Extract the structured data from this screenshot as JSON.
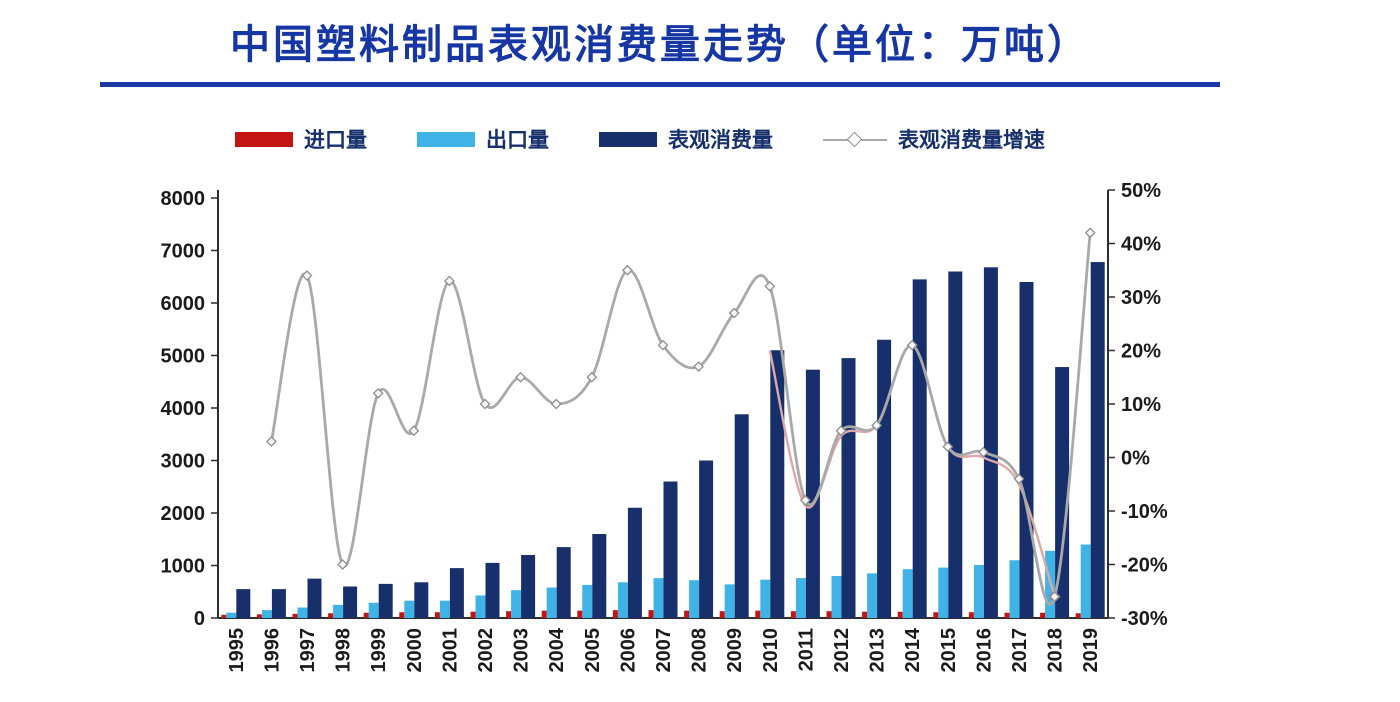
{
  "title": {
    "text": "中国塑料制品表观消费量走势（单位：万吨）",
    "color": "#1636a4",
    "underline_color": "#1c3aa6"
  },
  "legend": {
    "items": [
      {
        "key": "imports",
        "label": "进口量",
        "type": "bar",
        "color": "#c41414"
      },
      {
        "key": "exports",
        "label": "出口量",
        "type": "bar",
        "color": "#3fb3e6"
      },
      {
        "key": "consumption",
        "label": "表观消费量",
        "type": "bar",
        "color": "#17306b"
      },
      {
        "key": "growth",
        "label": "表观消费量增速",
        "type": "line",
        "color": "#a9a9a9"
      }
    ]
  },
  "chart_data": {
    "type": "bar+line",
    "title": "中国塑料制品表观消费量走势（单位：万吨）",
    "unit": "万吨",
    "grid": false,
    "legend_position": "top",
    "categories": [
      "1995",
      "1996",
      "1997",
      "1998",
      "1999",
      "2000",
      "2001",
      "2002",
      "2003",
      "2004",
      "2005",
      "2006",
      "2007",
      "2008",
      "2009",
      "2010",
      "2011",
      "2012",
      "2013",
      "2014",
      "2015",
      "2016",
      "2017",
      "2018",
      "2019"
    ],
    "series": [
      {
        "key": "imports",
        "name": "进口量",
        "type": "bar",
        "axis": "left",
        "color": "#c41414",
        "values": [
          60,
          70,
          80,
          90,
          100,
          110,
          110,
          120,
          130,
          140,
          140,
          150,
          150,
          140,
          130,
          140,
          130,
          130,
          120,
          120,
          110,
          110,
          100,
          100,
          90
        ]
      },
      {
        "key": "exports",
        "name": "出口量",
        "type": "bar",
        "axis": "left",
        "color": "#3fb3e6",
        "values": [
          100,
          150,
          200,
          250,
          290,
          330,
          330,
          430,
          530,
          580,
          630,
          680,
          760,
          720,
          640,
          730,
          760,
          800,
          850,
          930,
          960,
          1010,
          1100,
          1280,
          1400
        ]
      },
      {
        "key": "consumption",
        "name": "表观消费量",
        "type": "bar",
        "axis": "left",
        "color": "#17306b",
        "values": [
          550,
          550,
          750,
          600,
          650,
          680,
          950,
          1050,
          1200,
          1350,
          1600,
          2100,
          2600,
          3000,
          3880,
          5100,
          4730,
          4950,
          5300,
          6450,
          6600,
          6680,
          6400,
          4780,
          6780
        ]
      },
      {
        "key": "growth",
        "name": "表观消费量增速",
        "type": "line",
        "axis": "right",
        "color": "#a9a9a9",
        "unit": "%",
        "values": [
          null,
          3,
          34,
          -20,
          12,
          5,
          33,
          10,
          15,
          10,
          15,
          35,
          21,
          17,
          27,
          32,
          -8,
          5,
          6,
          21,
          2,
          1,
          -4,
          -26,
          42
        ]
      }
    ],
    "overlay_line": {
      "name": "增速重叠红线(2010-2018)",
      "color": "#dfa8a8",
      "start_category": "2010",
      "values": [
        20,
        -9,
        4,
        6,
        21,
        2,
        0,
        -5,
        -26
      ]
    },
    "left_axis": {
      "min": 0,
      "max": 8000,
      "step": 1000,
      "ticks": [
        {
          "value": 0,
          "label": "0"
        },
        {
          "value": 1000,
          "label": "1000"
        },
        {
          "value": 2000,
          "label": "2000"
        },
        {
          "value": 3000,
          "label": "3000"
        },
        {
          "value": 4000,
          "label": "4000"
        },
        {
          "value": 5000,
          "label": "5000"
        },
        {
          "value": 6000,
          "label": "6000"
        },
        {
          "value": 7000,
          "label": "7000"
        },
        {
          "value": 8000,
          "label": "8000"
        }
      ]
    },
    "right_axis": {
      "min": -30,
      "max": 50,
      "step": 10,
      "ticks": [
        {
          "value": -30,
          "label": "-30%"
        },
        {
          "value": -20,
          "label": "-20%"
        },
        {
          "value": -10,
          "label": "-10%"
        },
        {
          "value": 0,
          "label": "0%"
        },
        {
          "value": 10,
          "label": "10%"
        },
        {
          "value": 20,
          "label": "20%"
        },
        {
          "value": 30,
          "label": "30%"
        },
        {
          "value": 40,
          "label": "40%"
        },
        {
          "value": 50,
          "label": "50%"
        }
      ]
    }
  }
}
